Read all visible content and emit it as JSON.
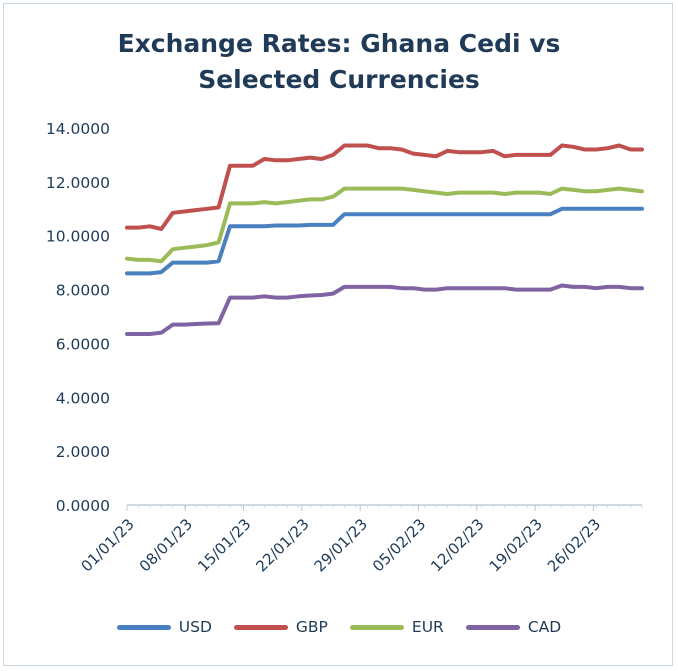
{
  "title_lines": [
    "Exchange Rates: Ghana Cedi vs",
    "Selected Currencies"
  ],
  "chart_data": {
    "type": "line",
    "title": "Exchange Rates: Ghana Cedi vs Selected Currencies",
    "xlabel": "",
    "ylabel": "",
    "ylim": [
      0,
      14
    ],
    "yticks": [
      "0.0000",
      "2.0000",
      "4.0000",
      "6.0000",
      "8.0000",
      "10.0000",
      "12.0000",
      "14.0000"
    ],
    "xticks": [
      "01/01/23",
      "08/01/23",
      "15/01/23",
      "22/01/23",
      "29/01/23",
      "05/02/23",
      "12/02/23",
      "19/02/23",
      "26/02/23"
    ],
    "legend_position": "bottom",
    "grid": false,
    "series": [
      {
        "name": "USD",
        "color": "#4a80c0",
        "values": [
          8.6,
          8.6,
          8.6,
          8.65,
          9.0,
          9.0,
          9.0,
          9.0,
          9.05,
          10.35,
          10.35,
          10.35,
          10.35,
          10.38,
          10.38,
          10.38,
          10.4,
          10.4,
          10.4,
          10.8,
          10.8,
          10.8,
          10.8,
          10.8,
          10.8,
          10.8,
          10.8,
          10.8,
          10.8,
          10.8,
          10.8,
          10.8,
          10.8,
          10.8,
          10.8,
          10.8,
          10.8,
          10.8,
          11.0,
          11.0,
          11.0,
          11.0,
          11.0,
          11.0,
          11.0,
          11.0
        ]
      },
      {
        "name": "GBP",
        "color": "#c0504d",
        "values": [
          10.3,
          10.3,
          10.35,
          10.25,
          10.85,
          10.9,
          10.95,
          11.0,
          11.05,
          12.6,
          12.6,
          12.6,
          12.85,
          12.8,
          12.8,
          12.85,
          12.9,
          12.85,
          13.0,
          13.35,
          13.35,
          13.35,
          13.25,
          13.25,
          13.2,
          13.05,
          13.0,
          12.95,
          13.15,
          13.1,
          13.1,
          13.1,
          13.15,
          12.95,
          13.0,
          13.0,
          13.0,
          13.0,
          13.35,
          13.3,
          13.2,
          13.2,
          13.25,
          13.35,
          13.2,
          13.2
        ]
      },
      {
        "name": "EUR",
        "color": "#9bbb59",
        "values": [
          9.15,
          9.1,
          9.1,
          9.05,
          9.5,
          9.55,
          9.6,
          9.65,
          9.75,
          11.2,
          11.2,
          11.2,
          11.25,
          11.2,
          11.25,
          11.3,
          11.35,
          11.35,
          11.45,
          11.75,
          11.75,
          11.75,
          11.75,
          11.75,
          11.75,
          11.7,
          11.65,
          11.6,
          11.55,
          11.6,
          11.6,
          11.6,
          11.6,
          11.55,
          11.6,
          11.6,
          11.6,
          11.55,
          11.75,
          11.7,
          11.65,
          11.65,
          11.7,
          11.75,
          11.7,
          11.65
        ]
      },
      {
        "name": "CAD",
        "color": "#8064a2",
        "values": [
          6.35,
          6.35,
          6.35,
          6.4,
          6.7,
          6.7,
          6.72,
          6.74,
          6.75,
          7.7,
          7.7,
          7.7,
          7.75,
          7.7,
          7.7,
          7.75,
          7.78,
          7.8,
          7.85,
          8.1,
          8.1,
          8.1,
          8.1,
          8.1,
          8.05,
          8.05,
          8.0,
          8.0,
          8.05,
          8.05,
          8.05,
          8.05,
          8.05,
          8.05,
          8.0,
          8.0,
          8.0,
          8.0,
          8.15,
          8.1,
          8.1,
          8.05,
          8.1,
          8.1,
          8.05,
          8.05
        ]
      }
    ]
  }
}
